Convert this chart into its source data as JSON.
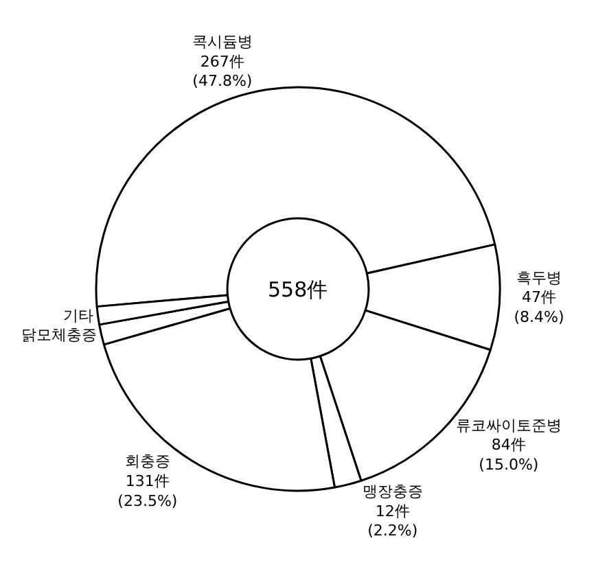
{
  "chart_data": {
    "type": "donut",
    "categories": [
      "콕시듐병",
      "흑두병",
      "류코싸이토준병",
      "맹장충증",
      "회충증",
      "닭모체충증",
      "기타"
    ],
    "values": [
      267,
      47,
      84,
      12,
      131,
      9,
      8
    ],
    "value_labels": [
      "267件 (47.8%)",
      "47件 (8.4%)",
      "84件 (15.0%)",
      "12件 (2.2%)",
      "131件 (23.5%)",
      null,
      null
    ],
    "colors": [
      "#ffffff",
      "#ffffff",
      "#ffffff",
      "#ffffff",
      "#ffffff",
      "#ffffff",
      "#ffffff"
    ],
    "annotations": [
      "558件"
    ],
    "legend": false
  }
}
